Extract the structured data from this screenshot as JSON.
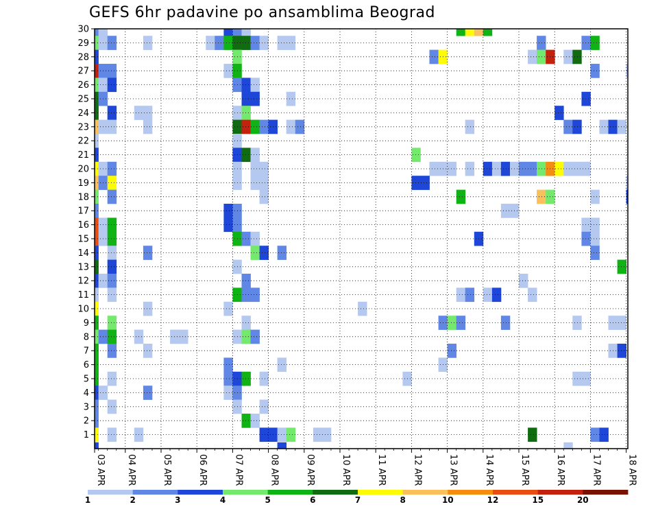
{
  "chart_data": {
    "type": "heatmap",
    "title": "GEFS 6hr padavine po ansamblima Beograd",
    "xlabel": "",
    "ylabel": "",
    "x_tick_labels": [
      "03 APR",
      "04 APR",
      "05 APR",
      "06 APR",
      "07 APR",
      "08 APR",
      "09 APR",
      "10 APR",
      "11 APR",
      "12 APR",
      "13 APR",
      "14 APR",
      "15 APR",
      "16 APR",
      "17 APR",
      "18 APR"
    ],
    "y_tick_labels": [
      1,
      2,
      3,
      4,
      5,
      6,
      7,
      8,
      9,
      10,
      11,
      12,
      13,
      14,
      15,
      16,
      17,
      18,
      19,
      20,
      21,
      22,
      23,
      24,
      25,
      26,
      27,
      28,
      29,
      30
    ],
    "x_unit": "6-hour step from 03 APR 00Z",
    "xlim": [
      0,
      60
    ],
    "ylim": [
      0,
      30
    ],
    "grid": true,
    "colorbar": {
      "labels": [
        "1",
        "2",
        "3",
        "4",
        "5",
        "6",
        "7",
        "8",
        "10",
        "12",
        "15",
        "20"
      ],
      "colors": [
        "#b4c8f0",
        "#6086e6",
        "#1e46d8",
        "#73ea6b",
        "#0fb414",
        "#116b11",
        "#fdfc05",
        "#fac05b",
        "#f58d11",
        "#e84d11",
        "#c4220e",
        "#7a1204"
      ]
    },
    "cells": [
      [
        0,
        30,
        2
      ],
      [
        1,
        30,
        1
      ],
      [
        15,
        30,
        3
      ],
      [
        16,
        30,
        2
      ],
      [
        17,
        30,
        1
      ],
      [
        41,
        30,
        5
      ],
      [
        42,
        30,
        7
      ],
      [
        43,
        30,
        8
      ],
      [
        44,
        30,
        5
      ],
      [
        0,
        29,
        4
      ],
      [
        1,
        29,
        1
      ],
      [
        2,
        29,
        2
      ],
      [
        6,
        29,
        1
      ],
      [
        13,
        29,
        1
      ],
      [
        14,
        29,
        2
      ],
      [
        15,
        29,
        5
      ],
      [
        16,
        29,
        6
      ],
      [
        17,
        29,
        6
      ],
      [
        18,
        29,
        2
      ],
      [
        19,
        29,
        1
      ],
      [
        21,
        29,
        1
      ],
      [
        22,
        29,
        1
      ],
      [
        50,
        29,
        2
      ],
      [
        55,
        29,
        2
      ],
      [
        56,
        29,
        5
      ],
      [
        0,
        28,
        3
      ],
      [
        16,
        28,
        4
      ],
      [
        38,
        28,
        2
      ],
      [
        39,
        28,
        7
      ],
      [
        49,
        28,
        1
      ],
      [
        50,
        28,
        4
      ],
      [
        51,
        28,
        11
      ],
      [
        53,
        28,
        1
      ],
      [
        54,
        28,
        6
      ],
      [
        0,
        27,
        11
      ],
      [
        1,
        27,
        2
      ],
      [
        2,
        27,
        2
      ],
      [
        15,
        27,
        1
      ],
      [
        16,
        27,
        5
      ],
      [
        56,
        27,
        2
      ],
      [
        60,
        27,
        1
      ],
      [
        0,
        26,
        4
      ],
      [
        1,
        26,
        1
      ],
      [
        2,
        26,
        3
      ],
      [
        16,
        26,
        2
      ],
      [
        17,
        26,
        3
      ],
      [
        18,
        26,
        1
      ],
      [
        0,
        25,
        6
      ],
      [
        1,
        25,
        2
      ],
      [
        17,
        25,
        3
      ],
      [
        18,
        25,
        3
      ],
      [
        22,
        25,
        1
      ],
      [
        55,
        25,
        3
      ],
      [
        0,
        24,
        6
      ],
      [
        2,
        24,
        3
      ],
      [
        5,
        24,
        1
      ],
      [
        6,
        24,
        1
      ],
      [
        16,
        24,
        1
      ],
      [
        17,
        24,
        4
      ],
      [
        52,
        24,
        3
      ],
      [
        0,
        23,
        8
      ],
      [
        1,
        23,
        1
      ],
      [
        2,
        23,
        1
      ],
      [
        6,
        23,
        1
      ],
      [
        16,
        23,
        6
      ],
      [
        17,
        23,
        11
      ],
      [
        18,
        23,
        5
      ],
      [
        19,
        23,
        2
      ],
      [
        20,
        23,
        3
      ],
      [
        22,
        23,
        1
      ],
      [
        23,
        23,
        2
      ],
      [
        42,
        23,
        1
      ],
      [
        53,
        23,
        2
      ],
      [
        54,
        23,
        3
      ],
      [
        57,
        23,
        1
      ],
      [
        58,
        23,
        3
      ],
      [
        59,
        23,
        1
      ],
      [
        0,
        22,
        1
      ],
      [
        16,
        22,
        1
      ],
      [
        0,
        21,
        3
      ],
      [
        16,
        21,
        3
      ],
      [
        17,
        21,
        6
      ],
      [
        18,
        21,
        1
      ],
      [
        36,
        21,
        4
      ],
      [
        0,
        20,
        7
      ],
      [
        1,
        20,
        1
      ],
      [
        2,
        20,
        2
      ],
      [
        16,
        20,
        1
      ],
      [
        18,
        20,
        1
      ],
      [
        19,
        20,
        1
      ],
      [
        38,
        20,
        1
      ],
      [
        39,
        20,
        1
      ],
      [
        40,
        20,
        1
      ],
      [
        42,
        20,
        1
      ],
      [
        44,
        20,
        3
      ],
      [
        45,
        20,
        1
      ],
      [
        46,
        20,
        3
      ],
      [
        47,
        20,
        1
      ],
      [
        48,
        20,
        2
      ],
      [
        49,
        20,
        2
      ],
      [
        50,
        20,
        4
      ],
      [
        51,
        20,
        9
      ],
      [
        52,
        20,
        7
      ],
      [
        53,
        20,
        1
      ],
      [
        54,
        20,
        1
      ],
      [
        55,
        20,
        1
      ],
      [
        0,
        19,
        8
      ],
      [
        1,
        19,
        2
      ],
      [
        2,
        19,
        7
      ],
      [
        16,
        19,
        1
      ],
      [
        18,
        19,
        1
      ],
      [
        19,
        19,
        1
      ],
      [
        36,
        19,
        3
      ],
      [
        37,
        19,
        3
      ],
      [
        60,
        19,
        1
      ],
      [
        0,
        18,
        4
      ],
      [
        2,
        18,
        2
      ],
      [
        19,
        18,
        1
      ],
      [
        41,
        18,
        5
      ],
      [
        50,
        18,
        8
      ],
      [
        51,
        18,
        4
      ],
      [
        56,
        18,
        1
      ],
      [
        60,
        18,
        3
      ],
      [
        0,
        17,
        2
      ],
      [
        15,
        17,
        3
      ],
      [
        16,
        17,
        2
      ],
      [
        46,
        17,
        1
      ],
      [
        47,
        17,
        1
      ],
      [
        0,
        16,
        10
      ],
      [
        1,
        16,
        1
      ],
      [
        2,
        16,
        5
      ],
      [
        15,
        16,
        3
      ],
      [
        16,
        16,
        2
      ],
      [
        55,
        16,
        1
      ],
      [
        56,
        16,
        1
      ],
      [
        0,
        15,
        10
      ],
      [
        1,
        15,
        1
      ],
      [
        2,
        15,
        5
      ],
      [
        16,
        15,
        5
      ],
      [
        17,
        15,
        2
      ],
      [
        18,
        15,
        1
      ],
      [
        43,
        15,
        3
      ],
      [
        55,
        15,
        2
      ],
      [
        56,
        15,
        1
      ],
      [
        0,
        14,
        3
      ],
      [
        2,
        14,
        1
      ],
      [
        6,
        14,
        2
      ],
      [
        18,
        14,
        4
      ],
      [
        19,
        14,
        3
      ],
      [
        21,
        14,
        2
      ],
      [
        56,
        14,
        2
      ],
      [
        0,
        13,
        6
      ],
      [
        2,
        13,
        3
      ],
      [
        16,
        13,
        1
      ],
      [
        59,
        13,
        5
      ],
      [
        0,
        12,
        3
      ],
      [
        1,
        12,
        1
      ],
      [
        2,
        12,
        2
      ],
      [
        17,
        12,
        2
      ],
      [
        48,
        12,
        1
      ],
      [
        0,
        11,
        1
      ],
      [
        2,
        11,
        1
      ],
      [
        16,
        11,
        5
      ],
      [
        17,
        11,
        2
      ],
      [
        18,
        11,
        2
      ],
      [
        41,
        11,
        1
      ],
      [
        42,
        11,
        2
      ],
      [
        44,
        11,
        1
      ],
      [
        45,
        11,
        3
      ],
      [
        49,
        11,
        1
      ],
      [
        0,
        10,
        7
      ],
      [
        6,
        10,
        1
      ],
      [
        15,
        10,
        1
      ],
      [
        30,
        10,
        1
      ],
      [
        0,
        9,
        5
      ],
      [
        2,
        9,
        4
      ],
      [
        17,
        9,
        1
      ],
      [
        39,
        9,
        2
      ],
      [
        40,
        9,
        4
      ],
      [
        41,
        9,
        2
      ],
      [
        46,
        9,
        2
      ],
      [
        54,
        9,
        1
      ],
      [
        58,
        9,
        1
      ],
      [
        59,
        9,
        1
      ],
      [
        0,
        8,
        4
      ],
      [
        1,
        8,
        2
      ],
      [
        2,
        8,
        5
      ],
      [
        5,
        8,
        1
      ],
      [
        9,
        8,
        1
      ],
      [
        10,
        8,
        1
      ],
      [
        16,
        8,
        1
      ],
      [
        17,
        8,
        4
      ],
      [
        18,
        8,
        2
      ],
      [
        0,
        7,
        5
      ],
      [
        2,
        7,
        2
      ],
      [
        6,
        7,
        1
      ],
      [
        40,
        7,
        2
      ],
      [
        58,
        7,
        1
      ],
      [
        59,
        7,
        3
      ],
      [
        0,
        6,
        5
      ],
      [
        15,
        6,
        2
      ],
      [
        21,
        6,
        1
      ],
      [
        39,
        6,
        1
      ],
      [
        0,
        5,
        5
      ],
      [
        2,
        5,
        1
      ],
      [
        15,
        5,
        2
      ],
      [
        16,
        5,
        3
      ],
      [
        17,
        5,
        5
      ],
      [
        19,
        5,
        1
      ],
      [
        35,
        5,
        1
      ],
      [
        54,
        5,
        1
      ],
      [
        55,
        5,
        1
      ],
      [
        0,
        4,
        3
      ],
      [
        1,
        4,
        1
      ],
      [
        6,
        4,
        2
      ],
      [
        15,
        4,
        1
      ],
      [
        16,
        4,
        2
      ],
      [
        0,
        3,
        2
      ],
      [
        2,
        3,
        1
      ],
      [
        16,
        3,
        1
      ],
      [
        19,
        3,
        1
      ],
      [
        0,
        2,
        2
      ],
      [
        17,
        2,
        5
      ],
      [
        18,
        2,
        1
      ],
      [
        0,
        1,
        7
      ],
      [
        2,
        1,
        1
      ],
      [
        5,
        1,
        1
      ],
      [
        19,
        1,
        3
      ],
      [
        20,
        1,
        3
      ],
      [
        21,
        1,
        1
      ],
      [
        22,
        1,
        4
      ],
      [
        25,
        1,
        1
      ],
      [
        26,
        1,
        1
      ],
      [
        49,
        1,
        6
      ],
      [
        56,
        1,
        2
      ],
      [
        57,
        1,
        3
      ],
      [
        0,
        0,
        3
      ],
      [
        21,
        0,
        3
      ],
      [
        53,
        0,
        1
      ]
    ]
  }
}
